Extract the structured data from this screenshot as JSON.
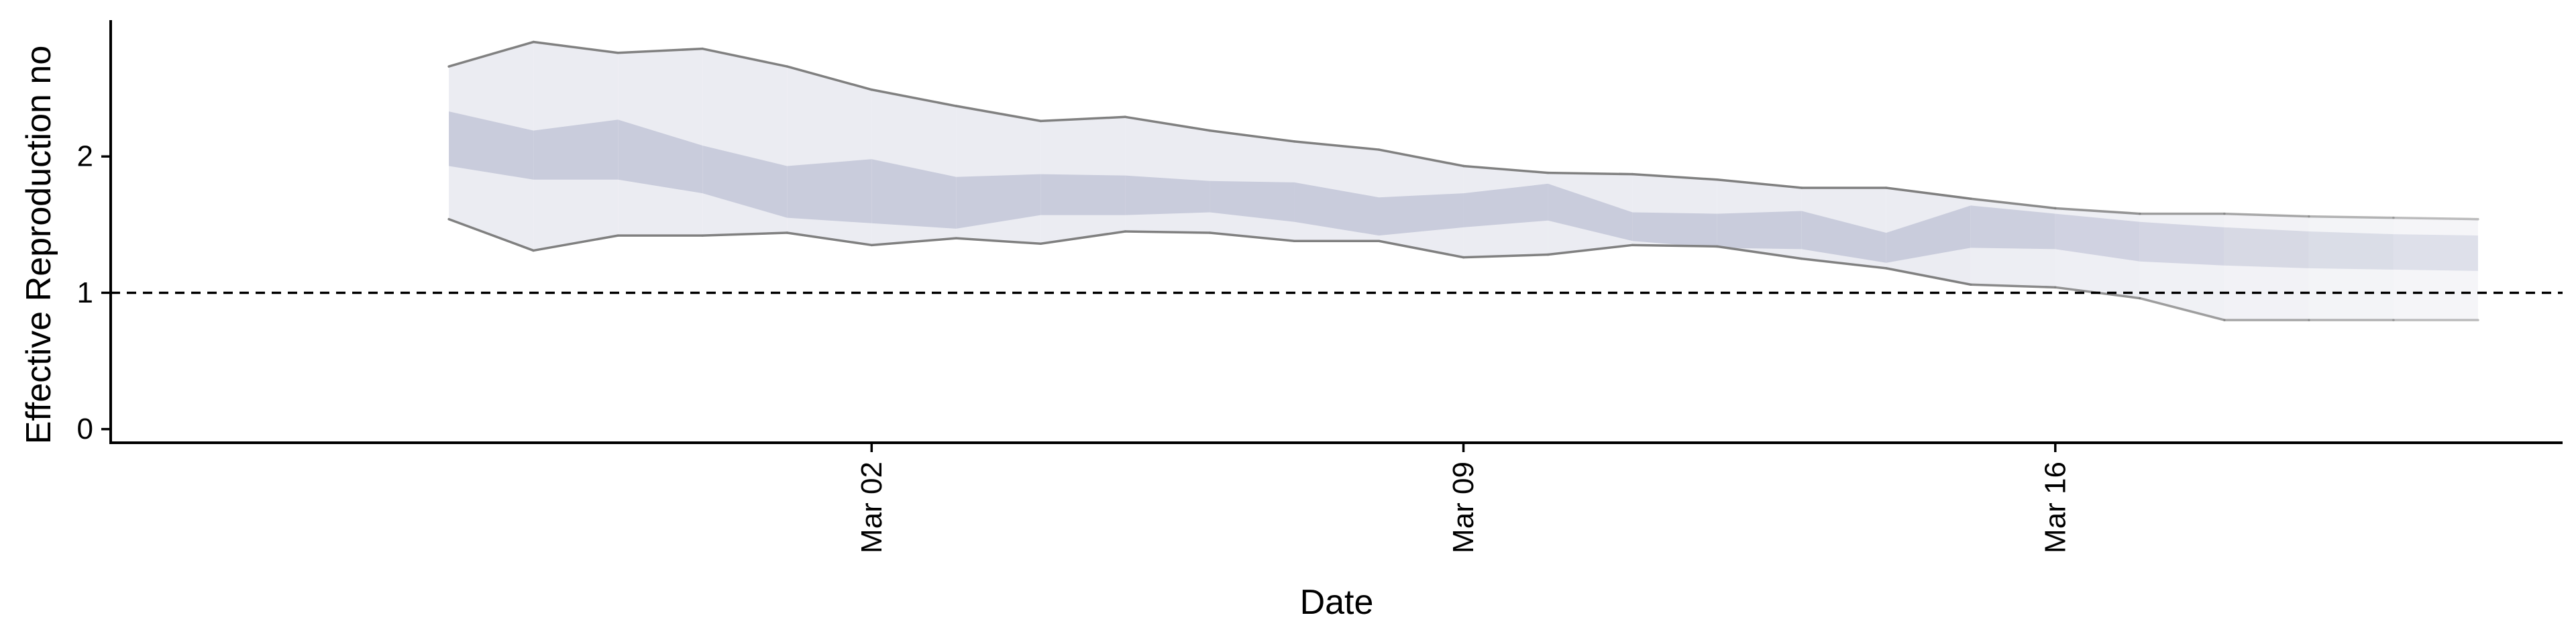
{
  "chart_data": {
    "type": "area",
    "title": "",
    "xlabel": "Date",
    "ylabel": "Effective Reproduction no",
    "x_type": "date",
    "xlim": [
      "2020-02-22",
      "2020-03-22"
    ],
    "ylim": [
      -0.1,
      3.0
    ],
    "x_ticks": [
      {
        "date": "2020-03-02",
        "label": "Mar 02"
      },
      {
        "date": "2020-03-09",
        "label": "Mar 09"
      },
      {
        "date": "2020-03-16",
        "label": "Mar 16"
      }
    ],
    "y_ticks": [
      0,
      1,
      2
    ],
    "reference_line": {
      "y": 1,
      "style": "dashed"
    },
    "grid": false,
    "legend": "none",
    "colors": {
      "outer_band": "#ebecf2",
      "inner_band": "#c9ccdc",
      "band_edge": "#808080",
      "reference_line": "#000000"
    },
    "series": [
      {
        "x": [
          "2020-02-26",
          "2020-02-27",
          "2020-02-28",
          "2020-02-29",
          "2020-03-01",
          "2020-03-02",
          "2020-03-03",
          "2020-03-04",
          "2020-03-05",
          "2020-03-06",
          "2020-03-07",
          "2020-03-08",
          "2020-03-09",
          "2020-03-10",
          "2020-03-11",
          "2020-03-12",
          "2020-03-13",
          "2020-03-14",
          "2020-03-15",
          "2020-03-16",
          "2020-03-17",
          "2020-03-18",
          "2020-03-19",
          "2020-03-20",
          "2020-03-21"
        ],
        "upper_90": [
          2.66,
          2.84,
          2.76,
          2.79,
          2.66,
          2.49,
          2.37,
          2.26,
          2.29,
          2.19,
          2.11,
          2.05,
          1.93,
          1.88,
          1.87,
          1.83,
          1.77,
          1.77,
          1.69,
          1.62,
          1.58,
          1.58,
          1.56,
          1.55,
          1.54
        ],
        "upper_50": [
          2.33,
          2.19,
          2.27,
          2.08,
          1.93,
          1.98,
          1.85,
          1.87,
          1.86,
          1.82,
          1.81,
          1.7,
          1.73,
          1.8,
          1.59,
          1.58,
          1.6,
          1.44,
          1.64,
          1.58,
          1.52,
          1.48,
          1.45,
          1.43,
          1.42
        ],
        "lower_50": [
          1.93,
          1.83,
          1.83,
          1.73,
          1.55,
          1.51,
          1.47,
          1.57,
          1.57,
          1.59,
          1.52,
          1.42,
          1.48,
          1.53,
          1.38,
          1.33,
          1.32,
          1.22,
          1.33,
          1.32,
          1.23,
          1.2,
          1.18,
          1.17,
          1.16
        ],
        "lower_90": [
          1.54,
          1.31,
          1.42,
          1.42,
          1.44,
          1.35,
          1.4,
          1.36,
          1.45,
          1.44,
          1.38,
          1.38,
          1.26,
          1.28,
          1.35,
          1.34,
          1.25,
          1.18,
          1.06,
          1.04,
          0.96,
          0.8,
          0.8,
          0.8,
          0.8
        ]
      }
    ]
  }
}
